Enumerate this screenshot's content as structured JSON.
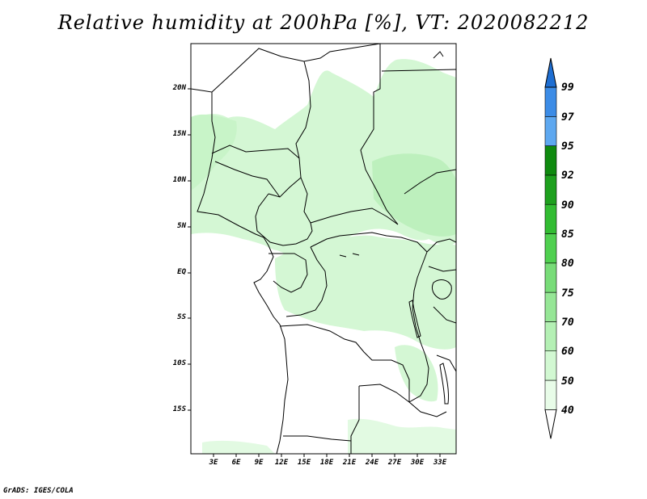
{
  "title": "Relative humidity at 200hPa [%], VT: 2020082212",
  "credit": "GrADS: IGES/COLA",
  "map": {
    "lat_labels": [
      "20N",
      "15N",
      "10N",
      "5N",
      "EQ",
      "5S",
      "10S",
      "15S"
    ],
    "lon_labels": [
      "3E",
      "6E",
      "9E",
      "12E",
      "15E",
      "18E",
      "21E",
      "24E",
      "27E",
      "30E",
      "33E"
    ]
  },
  "colorbar": {
    "levels": [
      "40",
      "50",
      "60",
      "70",
      "75",
      "80",
      "85",
      "90",
      "92",
      "95",
      "97",
      "99"
    ],
    "colors": [
      "#ffffff",
      "#e8fce8",
      "#d2f8d2",
      "#b4f0b4",
      "#96e696",
      "#78dc78",
      "#50d050",
      "#32bc32",
      "#1ea01e",
      "#0f8a0f",
      "#5ea8f0",
      "#3c8ce6",
      "#1e6ed2"
    ]
  }
}
